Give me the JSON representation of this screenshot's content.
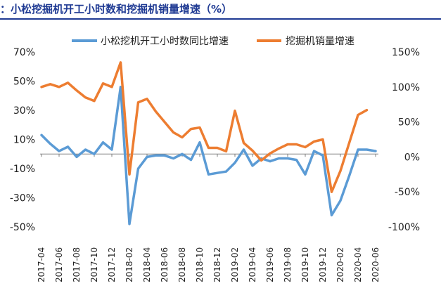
{
  "title": "：小松挖掘机开工小时数和挖掘机销量增速（%）",
  "chart_data": {
    "type": "line",
    "x": [
      "2017-04",
      "2017-05",
      "2017-06",
      "2017-07",
      "2017-08",
      "2017-09",
      "2017-10",
      "2017-11",
      "2017-12",
      "2018-01",
      "2018-02",
      "2018-03",
      "2018-04",
      "2018-05",
      "2018-06",
      "2018-07",
      "2018-08",
      "2018-09",
      "2018-10",
      "2018-11",
      "2018-12",
      "2019-01",
      "2019-02",
      "2019-03",
      "2019-04",
      "2019-05",
      "2019-06",
      "2019-07",
      "2019-08",
      "2019-09",
      "2019-10",
      "2019-11",
      "2019-12",
      "2020-01",
      "2020-02",
      "2020-03",
      "2020-04",
      "2020-05",
      "2020-06"
    ],
    "xticks": [
      "2017-04",
      "2017-06",
      "2017-08",
      "2017-10",
      "2017-12",
      "2018-02",
      "2018-04",
      "2018-06",
      "2018-08",
      "2018-10",
      "2018-12",
      "2019-02",
      "2019-04",
      "2019-06",
      "2019-08",
      "2019-10",
      "2019-12",
      "2020-02",
      "2020-04",
      "2020-06"
    ],
    "series": [
      {
        "name": "小松挖机开工小时数同比增速",
        "axis": "left",
        "color": "#5B9BD5",
        "values": [
          13,
          7,
          2,
          5,
          -2,
          3,
          0,
          8,
          3,
          46,
          -48,
          -10,
          -2,
          -1,
          -1,
          -3,
          0,
          -4,
          8,
          -14,
          -13,
          -12,
          -6,
          3,
          -8,
          -3,
          -5,
          -3,
          -3,
          -4,
          -14,
          2,
          -1,
          -42,
          -32,
          -15,
          3,
          3,
          2
        ]
      },
      {
        "name": "挖掘机销量增速",
        "axis": "right",
        "color": "#ED7D31",
        "values": [
          100,
          104,
          100,
          106,
          95,
          85,
          80,
          105,
          100,
          135,
          -25,
          78,
          83,
          65,
          50,
          35,
          28,
          40,
          42,
          13,
          13,
          8,
          66,
          20,
          9,
          -5,
          5,
          12,
          18,
          18,
          14,
          22,
          25,
          -50,
          -20,
          20,
          60,
          67,
          null
        ]
      }
    ],
    "ylim_left": [
      -50,
      70
    ],
    "yticks_left": [
      "70%",
      "50%",
      "30%",
      "10%",
      "-10%",
      "-30%",
      "-50%"
    ],
    "ylim_right": [
      -100,
      150
    ],
    "yticks_right": [
      "150%",
      "100%",
      "50%",
      "0%",
      "-50%",
      "-100%"
    ],
    "legend_position": "top"
  }
}
